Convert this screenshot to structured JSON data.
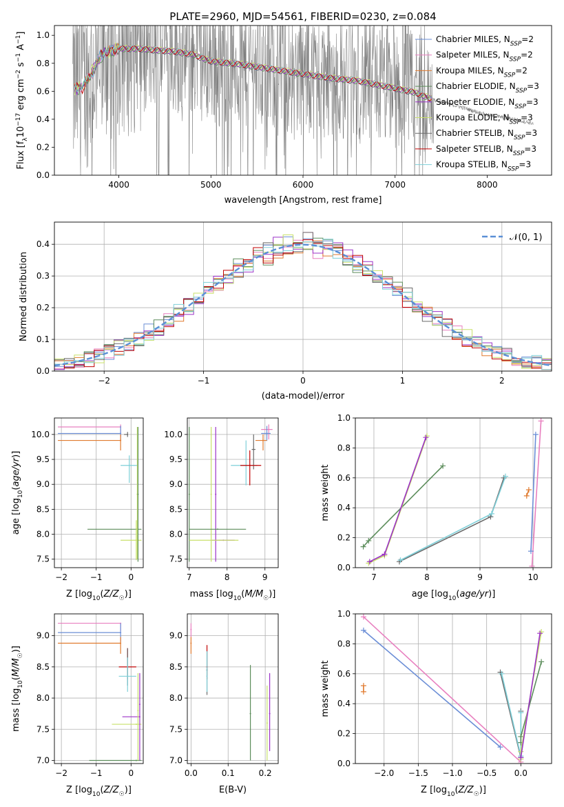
{
  "title": "PLATE=2960, MJD=54561, FIBERID=0230, z=0.084",
  "colors": {
    "chab_miles": "#6a8dd6",
    "salp_miles": "#e87fbf",
    "krou_miles": "#e07a2e",
    "chab_elodie": "#5b8c5a",
    "salp_elodie": "#9b30c8",
    "krou_elodie": "#c8e06a",
    "chab_stelib": "#6a6a6a",
    "salp_stelib": "#c00000",
    "krou_stelib": "#7ecfd8",
    "data": "#808080",
    "gauss": "#5a8fd6"
  },
  "chart_data": [
    {
      "type": "line",
      "id": "spectrum",
      "xlabel": "wavelength [Angstrom, rest frame]",
      "ylabel": "Flux [fλ10⁻¹⁷ erg cm⁻² s⁻¹ A⁻¹]",
      "xlim": [
        3300,
        8700
      ],
      "ylim": [
        0,
        1.07
      ],
      "xticks": [
        4000,
        5000,
        6000,
        7000,
        8000
      ],
      "yticks": [
        0.0,
        0.2,
        0.4,
        0.6,
        0.8,
        1.0
      ],
      "legend": [
        {
          "label": "Chabrier MILES, N",
          "sub": "SSP",
          "tail": "=2",
          "color": "chab_miles"
        },
        {
          "label": "Salpeter MILES, N",
          "sub": "SSP",
          "tail": "=2",
          "color": "salp_miles"
        },
        {
          "label": "Kroupa MILES, N",
          "sub": "SSP",
          "tail": "=2",
          "color": "krou_miles"
        },
        {
          "label": "Chabrier ELODIE, N",
          "sub": "SSP",
          "tail": "=3",
          "color": "chab_elodie"
        },
        {
          "label": "Salpeter ELODIE, N",
          "sub": "SSP",
          "tail": "=3",
          "color": "salp_elodie"
        },
        {
          "label": "Kroupa ELODIE, N",
          "sub": "SSP",
          "tail": "=3",
          "color": "krou_elodie"
        },
        {
          "label": "Chabrier STELIB, N",
          "sub": "SSP",
          "tail": "=3",
          "color": "chab_stelib"
        },
        {
          "label": "Salpeter STELIB, N",
          "sub": "SSP",
          "tail": "=3",
          "color": "salp_stelib"
        },
        {
          "label": "Kroupa STELIB, N",
          "sub": "SSP",
          "tail": "=3",
          "color": "krou_stelib"
        }
      ],
      "continuum": [
        [
          3500,
          0.6
        ],
        [
          3600,
          0.62
        ],
        [
          3700,
          0.72
        ],
        [
          3800,
          0.85
        ],
        [
          3900,
          0.88
        ],
        [
          4000,
          0.9
        ],
        [
          4200,
          0.9
        ],
        [
          4400,
          0.89
        ],
        [
          4600,
          0.88
        ],
        [
          4800,
          0.86
        ],
        [
          5000,
          0.81
        ],
        [
          5300,
          0.79
        ],
        [
          5600,
          0.76
        ],
        [
          6000,
          0.72
        ],
        [
          6300,
          0.69
        ],
        [
          6600,
          0.67
        ],
        [
          6900,
          0.63
        ],
        [
          7200,
          0.59
        ],
        [
          7400,
          0.54
        ],
        [
          7700,
          0.49
        ],
        [
          8000,
          0.43
        ],
        [
          8300,
          0.4
        ],
        [
          8500,
          0.37
        ]
      ]
    },
    {
      "type": "line",
      "id": "histogram",
      "xlabel": "(data-model)/error",
      "ylabel": "Normed distribution",
      "xlim": [
        -2.5,
        2.5
      ],
      "ylim": [
        0,
        0.47
      ],
      "xticks": [
        -2,
        -1,
        0,
        1,
        2
      ],
      "yticks": [
        0.0,
        0.1,
        0.2,
        0.3,
        0.4
      ],
      "legend_label": "𝒩(0, 1)",
      "gaussian": {
        "mu": 0,
        "sigma": 1
      }
    },
    {
      "type": "scatter",
      "id": "age_Z",
      "xlabel": "Z [log10(Z/Z☉)]",
      "ylabel": "age  [log10(age/yr)]",
      "xlim": [
        -2.2,
        0.35
      ],
      "ylim": [
        7.33,
        10.33
      ],
      "xticks": [
        -2,
        -1,
        0
      ],
      "yticks": [
        7.5,
        8.0,
        8.5,
        9.0,
        9.5,
        10.0
      ],
      "errorbars": [
        {
          "c": "salp_miles",
          "x": -0.3,
          "xerr": [
            1.8,
            0.0
          ],
          "y": 10.15,
          "yerr": [
            0.2,
            0.05
          ]
        },
        {
          "c": "chab_miles",
          "x": -0.3,
          "xerr": [
            1.8,
            0.0
          ],
          "y": 10.02,
          "yerr": [
            0.15,
            0.15
          ]
        },
        {
          "c": "krou_miles",
          "x": -0.3,
          "xerr": [
            1.8,
            0.0
          ],
          "y": 9.88,
          "yerr": [
            0.2,
            0.12
          ]
        },
        {
          "c": "chab_stelib",
          "x": -0.1,
          "xerr": [
            0.1,
            0.0
          ],
          "y": 10.0,
          "yerr": [
            0.05,
            0.05
          ]
        },
        {
          "c": "krou_stelib",
          "x": -0.05,
          "xerr": [
            0.25,
            0.25
          ],
          "y": 9.38,
          "yerr": [
            0.35,
            0.2
          ]
        },
        {
          "c": "chab_elodie",
          "x": 0.15,
          "xerr": [
            1.4,
            0.15
          ],
          "y": 8.1,
          "yerr": [
            0.0,
            0.0
          ]
        },
        {
          "c": "krou_elodie",
          "x": 0.15,
          "xerr": [
            0.45,
            0.15
          ],
          "y": 7.88,
          "yerr": [
            0.4,
            0.4
          ]
        },
        {
          "c": "krou_elodie",
          "x": 0.18,
          "xerr": [
            0.0,
            0.0
          ],
          "y": 8.8,
          "yerr": [
            1.3,
            1.35
          ]
        },
        {
          "c": "chab_elodie",
          "x": 0.2,
          "xerr": [
            0.0,
            0.0
          ],
          "y": 8.8,
          "yerr": [
            1.35,
            1.35
          ]
        }
      ]
    },
    {
      "type": "scatter",
      "id": "age_mass",
      "xlabel": "mass [log10(M/M☉)]",
      "xlim": [
        6.95,
        9.35
      ],
      "ylim": [
        7.33,
        10.33
      ],
      "xticks": [
        7,
        8,
        9
      ],
      "yticks": [
        7.5,
        8.0,
        8.5,
        9.0,
        9.5,
        10.0
      ],
      "errorbars": [
        {
          "c": "salp_miles",
          "x": 9.1,
          "xerr": [
            0.2,
            0.1
          ],
          "y": 10.1,
          "yerr": [
            0.2,
            0.1
          ]
        },
        {
          "c": "chab_miles",
          "x": 9.05,
          "xerr": [
            0.15,
            0.1
          ],
          "y": 10.02,
          "yerr": [
            0.15,
            0.15
          ]
        },
        {
          "c": "krou_miles",
          "x": 8.95,
          "xerr": [
            0.2,
            0.1
          ],
          "y": 9.88,
          "yerr": [
            0.2,
            0.12
          ]
        },
        {
          "c": "chab_stelib",
          "x": 8.7,
          "xerr": [
            0.05,
            0.05
          ],
          "y": 9.7,
          "yerr": [
            0.4,
            0.3
          ]
        },
        {
          "c": "krou_stelib",
          "x": 8.5,
          "xerr": [
            0.4,
            0.3
          ],
          "y": 9.38,
          "yerr": [
            0.4,
            0.5
          ]
        },
        {
          "c": "salp_stelib",
          "x": 8.6,
          "xerr": [
            0.25,
            0.3
          ],
          "y": 9.38,
          "yerr": [
            0.4,
            0.3
          ]
        },
        {
          "c": "chab_elodie",
          "x": 7.0,
          "xerr": [
            0.0,
            0.0
          ],
          "y": 8.8,
          "yerr": [
            1.35,
            1.35
          ]
        },
        {
          "c": "salp_elodie",
          "x": 7.7,
          "xerr": [
            0.0,
            0.0
          ],
          "y": 8.8,
          "yerr": [
            1.35,
            1.35
          ]
        },
        {
          "c": "krou_elodie",
          "x": 7.58,
          "xerr": [
            0.0,
            0.0
          ],
          "y": 8.8,
          "yerr": [
            1.35,
            1.35
          ]
        },
        {
          "c": "chab_elodie",
          "x": 7.75,
          "xerr": [
            0.75,
            0.75
          ],
          "y": 8.1,
          "yerr": [
            0.0,
            0.0
          ]
        },
        {
          "c": "salp_elodie",
          "x": 7.9,
          "xerr": [
            0.3,
            0.3
          ],
          "y": 7.88,
          "yerr": [
            0.0,
            0.0
          ]
        },
        {
          "c": "krou_elodie",
          "x": 7.8,
          "xerr": [
            0.8,
            0.5
          ],
          "y": 7.88,
          "yerr": [
            0.0,
            0.0
          ]
        }
      ]
    },
    {
      "type": "line",
      "id": "mw_age",
      "xlabel": "age  [log10(age/yr)]",
      "ylabel": "mass weight",
      "xlim": [
        6.65,
        10.35
      ],
      "ylim": [
        0,
        1
      ],
      "xticks": [
        7,
        8,
        9,
        10
      ],
      "yticks": [
        0.0,
        0.2,
        0.4,
        0.6,
        0.8,
        1.0
      ],
      "series": [
        {
          "c": "salp_miles",
          "pts": [
            [
              9.98,
              0.01
            ],
            [
              10.15,
              0.98
            ]
          ]
        },
        {
          "c": "chab_miles",
          "pts": [
            [
              9.96,
              0.11
            ],
            [
              10.05,
              0.89
            ]
          ]
        },
        {
          "c": "krou_miles",
          "pts": [
            [
              9.88,
              0.48
            ],
            [
              9.92,
              0.52
            ]
          ]
        },
        {
          "c": "chab_elodie",
          "pts": [
            [
              6.8,
              0.14
            ],
            [
              6.9,
              0.18
            ],
            [
              8.3,
              0.68
            ]
          ]
        },
        {
          "c": "krou_elodie",
          "pts": [
            [
              6.9,
              0.03
            ],
            [
              7.2,
              0.08
            ],
            [
              8.0,
              0.88
            ]
          ]
        },
        {
          "c": "salp_elodie",
          "pts": [
            [
              6.92,
              0.04
            ],
            [
              7.2,
              0.09
            ],
            [
              7.98,
              0.87
            ]
          ]
        },
        {
          "c": "chab_stelib",
          "pts": [
            [
              7.48,
              0.04
            ],
            [
              9.2,
              0.34
            ],
            [
              9.45,
              0.6
            ]
          ]
        },
        {
          "c": "krou_stelib",
          "pts": [
            [
              7.5,
              0.05
            ],
            [
              9.22,
              0.36
            ],
            [
              9.48,
              0.61
            ]
          ]
        }
      ]
    },
    {
      "type": "scatter",
      "id": "mass_Z",
      "xlabel": "Z [log10(Z/Z☉)]",
      "ylabel": "mass [log10(M/M☉)]",
      "xlim": [
        -2.2,
        0.35
      ],
      "ylim": [
        6.95,
        9.35
      ],
      "xticks": [
        -2,
        -1,
        0
      ],
      "yticks": [
        7.0,
        7.5,
        8.0,
        8.5,
        9.0
      ],
      "errorbars": [
        {
          "c": "salp_miles",
          "x": -0.3,
          "xerr": [
            1.8,
            0.0
          ],
          "y": 9.2,
          "yerr": [
            0.12,
            0.0
          ]
        },
        {
          "c": "chab_miles",
          "x": -0.3,
          "xerr": [
            1.8,
            0.0
          ],
          "y": 9.05,
          "yerr": [
            0.15,
            0.15
          ]
        },
        {
          "c": "krou_miles",
          "x": -0.3,
          "xerr": [
            1.8,
            0.0
          ],
          "y": 8.88,
          "yerr": [
            0.17,
            0.1
          ]
        },
        {
          "c": "salp_stelib",
          "x": -0.1,
          "xerr": [
            0.25,
            0.25
          ],
          "y": 8.5,
          "yerr": [
            0.2,
            0.3
          ]
        },
        {
          "c": "chab_stelib",
          "x": -0.1,
          "xerr": [
            0.0,
            0.0
          ],
          "y": 8.5,
          "yerr": [
            0.3,
            0.3
          ]
        },
        {
          "c": "krou_stelib",
          "x": -0.1,
          "xerr": [
            0.25,
            0.25
          ],
          "y": 8.35,
          "yerr": [
            0.25,
            0.3
          ]
        },
        {
          "c": "salp_elodie",
          "x": 0.25,
          "xerr": [
            0.5,
            0.0
          ],
          "y": 7.7,
          "yerr": [
            0.0,
            0.0
          ]
        },
        {
          "c": "krou_elodie",
          "x": 0.15,
          "xerr": [
            0.7,
            0.15
          ],
          "y": 7.58,
          "yerr": [
            0.0,
            0.0
          ]
        },
        {
          "c": "chab_elodie",
          "x": 0.15,
          "xerr": [
            1.35,
            0.15
          ],
          "y": 7.0,
          "yerr": [
            0.0,
            0.0
          ]
        },
        {
          "c": "krou_elodie",
          "x": 0.2,
          "xerr": [
            0.0,
            0.0
          ],
          "y": 7.8,
          "yerr": [
            0.8,
            0.6
          ]
        },
        {
          "c": "salp_elodie",
          "x": 0.25,
          "xerr": [
            0.0,
            0.0
          ],
          "y": 7.9,
          "yerr": [
            0.9,
            0.5
          ]
        }
      ]
    },
    {
      "type": "scatter",
      "id": "mass_ebv",
      "xlabel": "E(B-V)",
      "xlim": [
        -0.01,
        0.235
      ],
      "ylim": [
        6.95,
        9.35
      ],
      "xticks": [
        0.0,
        0.1,
        0.2
      ],
      "yticks": [
        7.0,
        7.5,
        8.0,
        8.5,
        9.0
      ],
      "errorbars": [
        {
          "c": "salp_miles",
          "x": 0.0,
          "xerr": [
            0.0,
            0.0
          ],
          "y": 9.1,
          "yerr": [
            0.12,
            0.1
          ]
        },
        {
          "c": "krou_miles",
          "x": 0.0,
          "xerr": [
            0.0,
            0.0
          ],
          "y": 8.88,
          "yerr": [
            0.17,
            0.1
          ]
        },
        {
          "c": "salp_stelib",
          "x": 0.043,
          "xerr": [
            0.0,
            0.0
          ],
          "y": 8.5,
          "yerr": [
            0.2,
            0.35
          ]
        },
        {
          "c": "chab_stelib",
          "x": 0.043,
          "xerr": [
            0.0,
            0.0
          ],
          "y": 8.45,
          "yerr": [
            0.4,
            0.3
          ]
        },
        {
          "c": "krou_stelib",
          "x": 0.043,
          "xerr": [
            0.0,
            0.0
          ],
          "y": 8.35,
          "yerr": [
            0.25,
            0.4
          ]
        },
        {
          "c": "chab_elodie",
          "x": 0.16,
          "xerr": [
            0.0,
            0.0
          ],
          "y": 7.75,
          "yerr": [
            0.75,
            0.78
          ]
        },
        {
          "c": "krou_elodie",
          "x": 0.205,
          "xerr": [
            0.0,
            0.0
          ],
          "y": 7.6,
          "yerr": [
            0.6,
            0.6
          ]
        },
        {
          "c": "salp_elodie",
          "x": 0.212,
          "xerr": [
            0.0,
            0.0
          ],
          "y": 7.75,
          "yerr": [
            0.6,
            0.65
          ]
        }
      ]
    },
    {
      "type": "line",
      "id": "mw_Z",
      "xlabel": "Z [log10(Z/Z☉)]",
      "ylabel": "mass weight",
      "xlim": [
        -2.42,
        0.45
      ],
      "ylim": [
        0,
        1
      ],
      "xticks": [
        -2.0,
        -1.5,
        -1.0,
        -0.5,
        0.0
      ],
      "yticks": [
        0.0,
        0.2,
        0.4,
        0.6,
        0.8,
        1.0
      ],
      "series": [
        {
          "c": "salp_miles",
          "pts": [
            [
              -2.3,
              0.98
            ],
            [
              0.0,
              0.01
            ]
          ]
        },
        {
          "c": "chab_miles",
          "pts": [
            [
              -2.3,
              0.89
            ],
            [
              -0.3,
              0.11
            ]
          ]
        },
        {
          "c": "krou_miles",
          "pts": [
            [
              -2.3,
              0.48
            ],
            [
              -2.3,
              0.52
            ]
          ]
        },
        {
          "c": "chab_stelib",
          "pts": [
            [
              -0.3,
              0.61
            ],
            [
              0.0,
              0.04
            ],
            [
              0.0,
              0.35
            ]
          ]
        },
        {
          "c": "krou_stelib",
          "pts": [
            [
              -0.28,
              0.6
            ],
            [
              0.0,
              0.05
            ],
            [
              0.0,
              0.34
            ]
          ]
        },
        {
          "c": "chab_elodie",
          "pts": [
            [
              0.0,
              0.14
            ],
            [
              0.0,
              0.18
            ],
            [
              0.3,
              0.68
            ]
          ]
        },
        {
          "c": "krou_elodie",
          "pts": [
            [
              0.0,
              0.03
            ],
            [
              0.0,
              0.08
            ],
            [
              0.3,
              0.88
            ]
          ]
        },
        {
          "c": "salp_elodie",
          "pts": [
            [
              0.0,
              0.04
            ],
            [
              0.28,
              0.87
            ]
          ]
        }
      ]
    }
  ]
}
